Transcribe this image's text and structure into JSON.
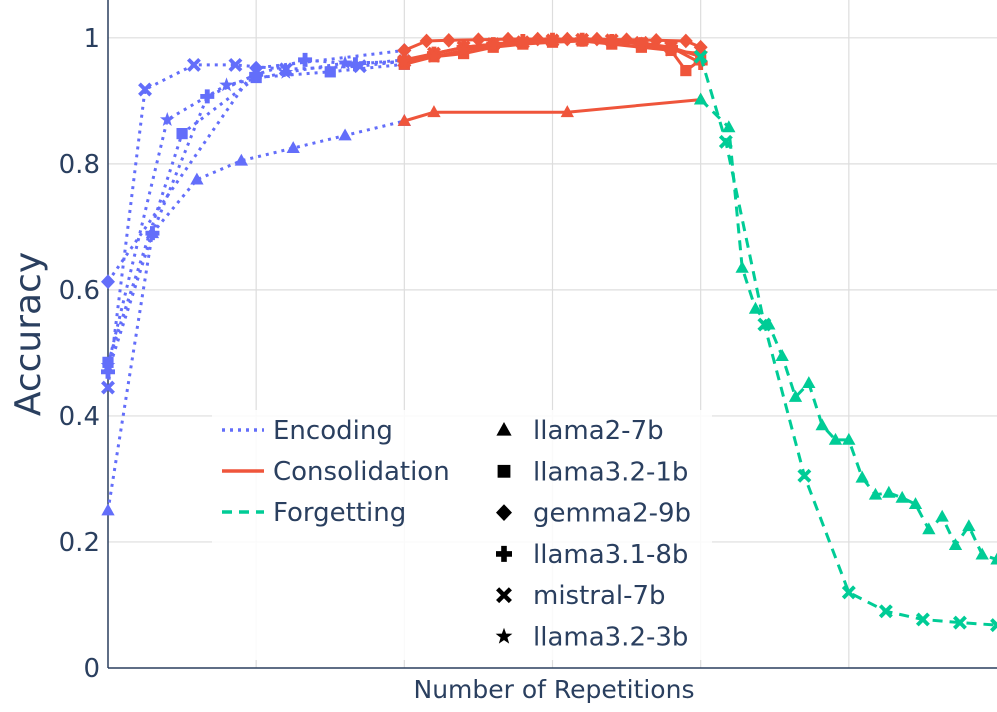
{
  "chart_data": {
    "type": "line",
    "title": "",
    "xlabel": "Number of Repetitions",
    "ylabel": "Accuracy",
    "xlim": [
      0,
      60
    ],
    "ylim": [
      0,
      1.06
    ],
    "yticks": [
      0,
      0.2,
      0.4,
      0.6,
      0.8,
      1
    ],
    "ytick_labels": [
      "0",
      "0.2",
      "0.4",
      "0.6",
      "0.8",
      "1"
    ],
    "x_grid": [
      10,
      20,
      30,
      40,
      50
    ],
    "grid": true,
    "legend_phases": [
      {
        "name": "Encoding",
        "color": "#636efa",
        "dash": "dot"
      },
      {
        "name": "Consolidation",
        "color": "#ef553b",
        "dash": "solid"
      },
      {
        "name": "Forgetting",
        "color": "#00cc96",
        "dash": "dash"
      }
    ],
    "legend_models": [
      {
        "name": "llama2-7b",
        "symbol": "triangle"
      },
      {
        "name": "llama3.2-1b",
        "symbol": "square"
      },
      {
        "name": "gemma2-9b",
        "symbol": "diamond"
      },
      {
        "name": "llama3.1-8b",
        "symbol": "cross"
      },
      {
        "name": "mistral-7b",
        "symbol": "x"
      },
      {
        "name": "llama3.2-3b",
        "symbol": "star"
      }
    ],
    "series": [
      {
        "name": "Encoding llama2-7b",
        "phase": "Encoding",
        "symbol": "triangle",
        "x": [
          0,
          3,
          6,
          9,
          12.5,
          16,
          20
        ],
        "y": [
          0.25,
          0.69,
          0.775,
          0.805,
          0.825,
          0.845,
          0.868
        ]
      },
      {
        "name": "Encoding llama3.2-1b",
        "phase": "Encoding",
        "symbol": "square",
        "x": [
          0,
          5,
          10,
          15,
          20
        ],
        "y": [
          0.485,
          0.848,
          0.937,
          0.946,
          0.958
        ]
      },
      {
        "name": "Encoding gemma2-9b",
        "phase": "Encoding",
        "symbol": "diamond",
        "x": [
          0,
          10,
          20
        ],
        "y": [
          0.613,
          0.952,
          0.98
        ]
      },
      {
        "name": "Encoding llama3.1-8b",
        "phase": "Encoding",
        "symbol": "cross",
        "x": [
          0,
          3,
          6.7,
          10,
          13.3,
          16.7,
          20
        ],
        "y": [
          0.47,
          0.69,
          0.907,
          0.942,
          0.965,
          0.958,
          0.965
        ]
      },
      {
        "name": "Encoding mistral-7b",
        "phase": "Encoding",
        "symbol": "x",
        "x": [
          0,
          2.5,
          5.8,
          8.6,
          12,
          17,
          20
        ],
        "y": [
          0.445,
          0.918,
          0.957,
          0.957,
          0.95,
          0.955,
          0.963
        ]
      },
      {
        "name": "Encoding llama3.2-3b",
        "phase": "Encoding",
        "symbol": "star",
        "x": [
          0,
          4,
          8,
          12,
          16,
          20
        ],
        "y": [
          0.48,
          0.87,
          0.925,
          0.945,
          0.96,
          0.962
        ]
      },
      {
        "name": "Consolidation llama2-7b",
        "phase": "Consolidation",
        "symbol": "triangle",
        "x": [
          20,
          22,
          31,
          40
        ],
        "y": [
          0.868,
          0.882,
          0.882,
          0.902
        ]
      },
      {
        "name": "Consolidation llama3.2-1b",
        "phase": "Consolidation",
        "symbol": "square",
        "x": [
          20,
          22,
          24,
          26,
          28,
          30,
          32,
          34,
          36,
          38,
          39,
          40
        ],
        "y": [
          0.958,
          0.97,
          0.975,
          0.985,
          0.99,
          0.993,
          0.995,
          0.99,
          0.985,
          0.98,
          0.948,
          0.965
        ]
      },
      {
        "name": "Consolidation gemma2-9b",
        "phase": "Consolidation",
        "symbol": "diamond",
        "x": [
          20,
          21.5,
          23,
          25,
          27,
          29,
          31,
          33,
          35,
          37,
          39,
          40
        ],
        "y": [
          0.98,
          0.995,
          0.996,
          0.997,
          0.998,
          0.998,
          0.998,
          0.998,
          0.997,
          0.996,
          0.995,
          0.985
        ]
      },
      {
        "name": "Consolidation llama3.1-8b",
        "phase": "Consolidation",
        "symbol": "cross",
        "x": [
          20,
          22,
          24,
          26,
          28,
          30,
          32,
          34,
          36,
          38,
          40
        ],
        "y": [
          0.965,
          0.975,
          0.985,
          0.99,
          0.995,
          0.997,
          0.997,
          0.995,
          0.99,
          0.985,
          0.96
        ]
      },
      {
        "name": "Consolidation mistral-7b",
        "phase": "Consolidation",
        "symbol": "x",
        "x": [
          20,
          22,
          24,
          26,
          28,
          30,
          32,
          34,
          36,
          38,
          40
        ],
        "y": [
          0.963,
          0.975,
          0.985,
          0.99,
          0.993,
          0.996,
          0.997,
          0.996,
          0.992,
          0.985,
          0.97
        ]
      },
      {
        "name": "Consolidation llama3.2-3b",
        "phase": "Consolidation",
        "symbol": "star",
        "x": [
          20,
          22,
          24,
          26,
          28,
          30,
          32,
          34,
          36,
          38,
          40
        ],
        "y": [
          0.962,
          0.97,
          0.98,
          0.988,
          0.993,
          0.995,
          0.996,
          0.994,
          0.99,
          0.98,
          0.975
        ]
      },
      {
        "name": "Forgetting llama2-7b",
        "phase": "Forgetting",
        "symbol": "triangle",
        "x": [
          40,
          41.9,
          42.8,
          43.7,
          44.6,
          45.5,
          46.4,
          47.3,
          48.2,
          49.1,
          50,
          50.9,
          51.8,
          52.7,
          53.6,
          54.5,
          55.4,
          56.3,
          57.2,
          58.1,
          59,
          60
        ],
        "y": [
          0.902,
          0.858,
          0.635,
          0.57,
          0.545,
          0.495,
          0.43,
          0.452,
          0.385,
          0.362,
          0.362,
          0.302,
          0.275,
          0.278,
          0.27,
          0.26,
          0.22,
          0.24,
          0.195,
          0.225,
          0.18,
          0.172
        ]
      },
      {
        "name": "Forgetting mistral-7b",
        "phase": "Forgetting",
        "symbol": "x",
        "x": [
          40,
          41.7,
          44.3,
          47,
          50,
          52.5,
          55,
          57.5,
          60
        ],
        "y": [
          0.97,
          0.835,
          0.545,
          0.305,
          0.12,
          0.09,
          0.077,
          0.072,
          0.068
        ]
      }
    ]
  }
}
